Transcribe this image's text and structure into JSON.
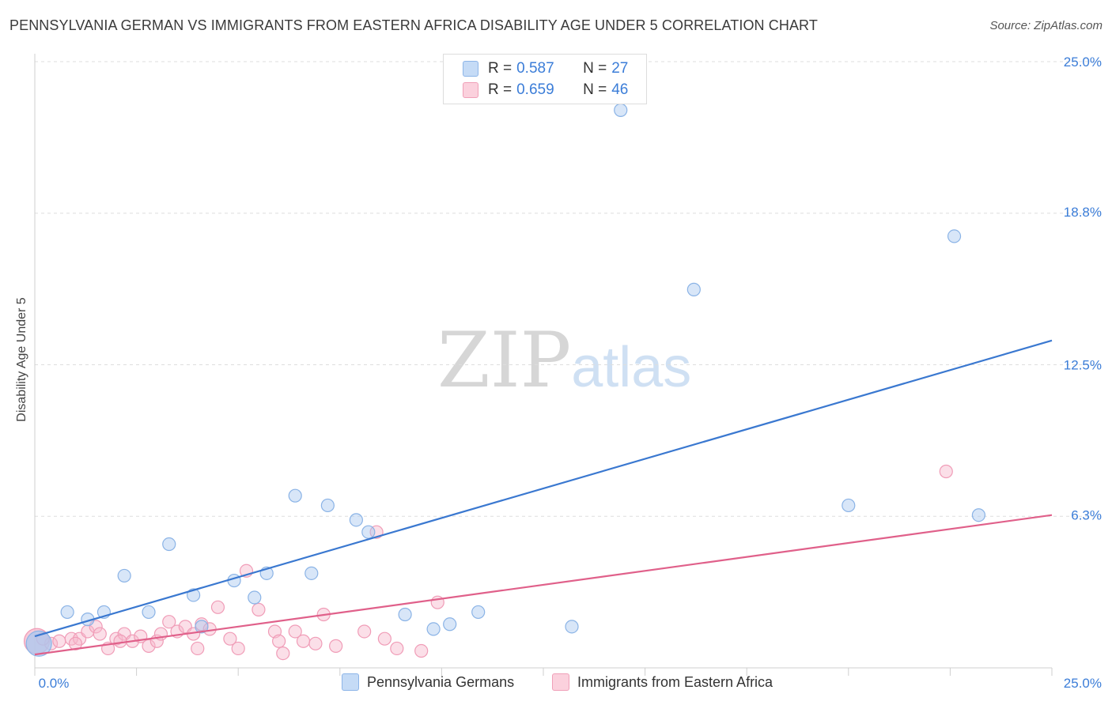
{
  "title": "PENNSYLVANIA GERMAN VS IMMIGRANTS FROM EASTERN AFRICA DISABILITY AGE UNDER 5 CORRELATION CHART",
  "source": "Source: ZipAtlas.com",
  "watermark": {
    "zip": "ZIP",
    "atlas": "atlas"
  },
  "legend": {
    "rows": [
      {
        "r_label": "R =",
        "r_value": "0.587",
        "n_label": "N =",
        "n_value": "27",
        "color": "#a9c8f0"
      },
      {
        "r_label": "R =",
        "r_value": "0.659",
        "n_label": "N =",
        "n_value": "46",
        "color": "#f6b8cb"
      }
    ]
  },
  "bottom_legend": [
    {
      "label": "Pennsylvania Germans",
      "color": "#a9c8f0"
    },
    {
      "label": "Immigrants from Eastern Africa",
      "color": "#f6b8cb"
    }
  ],
  "chart_data": {
    "type": "scatter",
    "title": "PENNSYLVANIA GERMAN VS IMMIGRANTS FROM EASTERN AFRICA DISABILITY AGE UNDER 5 CORRELATION CHART",
    "xlabel": "",
    "ylabel": "Disability Age Under 5",
    "xlim": [
      0,
      25
    ],
    "ylim": [
      0,
      25
    ],
    "x_tick_labels": [
      "0.0%",
      "25.0%"
    ],
    "y_ticks": [
      6.3,
      12.5,
      18.8,
      25.0
    ],
    "y_tick_labels": [
      "6.3%",
      "12.5%",
      "18.8%",
      "25.0%"
    ],
    "grid": true,
    "series": [
      {
        "name": "Pennsylvania Germans",
        "color": "#a9c8f0",
        "line_color": "#3a78d0",
        "trend": {
          "x": [
            0,
            25
          ],
          "y": [
            1.3,
            13.5
          ]
        },
        "points": [
          {
            "x": 0.1,
            "y": 1.0,
            "big": true
          },
          {
            "x": 0.8,
            "y": 2.3
          },
          {
            "x": 1.3,
            "y": 2.0
          },
          {
            "x": 1.7,
            "y": 2.3
          },
          {
            "x": 2.2,
            "y": 3.8
          },
          {
            "x": 2.8,
            "y": 2.3
          },
          {
            "x": 3.3,
            "y": 5.1
          },
          {
            "x": 3.9,
            "y": 3.0
          },
          {
            "x": 4.1,
            "y": 1.7
          },
          {
            "x": 4.9,
            "y": 3.6
          },
          {
            "x": 5.4,
            "y": 2.9
          },
          {
            "x": 5.7,
            "y": 3.9
          },
          {
            "x": 6.4,
            "y": 7.1
          },
          {
            "x": 6.8,
            "y": 3.9
          },
          {
            "x": 7.2,
            "y": 6.7
          },
          {
            "x": 7.9,
            "y": 6.1
          },
          {
            "x": 8.2,
            "y": 5.6
          },
          {
            "x": 9.1,
            "y": 2.2
          },
          {
            "x": 9.8,
            "y": 1.6
          },
          {
            "x": 10.2,
            "y": 1.8
          },
          {
            "x": 10.9,
            "y": 2.3
          },
          {
            "x": 13.2,
            "y": 1.7
          },
          {
            "x": 14.4,
            "y": 23.0
          },
          {
            "x": 16.2,
            "y": 15.6
          },
          {
            "x": 20.0,
            "y": 6.7
          },
          {
            "x": 22.6,
            "y": 17.8
          },
          {
            "x": 23.2,
            "y": 6.3
          }
        ]
      },
      {
        "name": "Immigrants from Eastern Africa",
        "color": "#f6b8cb",
        "line_color": "#e0608a",
        "trend": {
          "x": [
            0,
            25
          ],
          "y": [
            0.55,
            6.3
          ]
        },
        "points": [
          {
            "x": 0.05,
            "y": 1.1,
            "big": true
          },
          {
            "x": 0.4,
            "y": 1.0
          },
          {
            "x": 0.6,
            "y": 1.1
          },
          {
            "x": 0.9,
            "y": 1.2
          },
          {
            "x": 1.1,
            "y": 1.2
          },
          {
            "x": 1.3,
            "y": 1.5
          },
          {
            "x": 1.5,
            "y": 1.7
          },
          {
            "x": 1.6,
            "y": 1.4
          },
          {
            "x": 1.8,
            "y": 0.8
          },
          {
            "x": 2.0,
            "y": 1.2
          },
          {
            "x": 2.2,
            "y": 1.4
          },
          {
            "x": 2.4,
            "y": 1.1
          },
          {
            "x": 2.6,
            "y": 1.3
          },
          {
            "x": 2.8,
            "y": 0.9
          },
          {
            "x": 3.0,
            "y": 1.1
          },
          {
            "x": 3.1,
            "y": 1.4
          },
          {
            "x": 3.3,
            "y": 1.9
          },
          {
            "x": 3.5,
            "y": 1.5
          },
          {
            "x": 3.7,
            "y": 1.7
          },
          {
            "x": 3.9,
            "y": 1.4
          },
          {
            "x": 4.1,
            "y": 1.8
          },
          {
            "x": 4.3,
            "y": 1.6
          },
          {
            "x": 4.5,
            "y": 2.5
          },
          {
            "x": 4.8,
            "y": 1.2
          },
          {
            "x": 5.0,
            "y": 0.8
          },
          {
            "x": 5.2,
            "y": 4.0
          },
          {
            "x": 5.5,
            "y": 2.4
          },
          {
            "x": 5.9,
            "y": 1.5
          },
          {
            "x": 6.1,
            "y": 0.6
          },
          {
            "x": 6.4,
            "y": 1.5
          },
          {
            "x": 6.6,
            "y": 1.1
          },
          {
            "x": 6.9,
            "y": 1.0
          },
          {
            "x": 7.1,
            "y": 2.2
          },
          {
            "x": 7.4,
            "y": 0.9
          },
          {
            "x": 8.1,
            "y": 1.5
          },
          {
            "x": 8.4,
            "y": 5.6
          },
          {
            "x": 8.9,
            "y": 0.8
          },
          {
            "x": 9.5,
            "y": 0.7
          },
          {
            "x": 9.9,
            "y": 2.7
          },
          {
            "x": 22.4,
            "y": 8.1
          },
          {
            "x": 1.0,
            "y": 1.0
          },
          {
            "x": 2.1,
            "y": 1.1
          },
          {
            "x": 4.0,
            "y": 0.8
          },
          {
            "x": 6.0,
            "y": 1.1
          },
          {
            "x": 8.6,
            "y": 1.2
          },
          {
            "x": 0.2,
            "y": 1.2
          }
        ]
      }
    ]
  }
}
